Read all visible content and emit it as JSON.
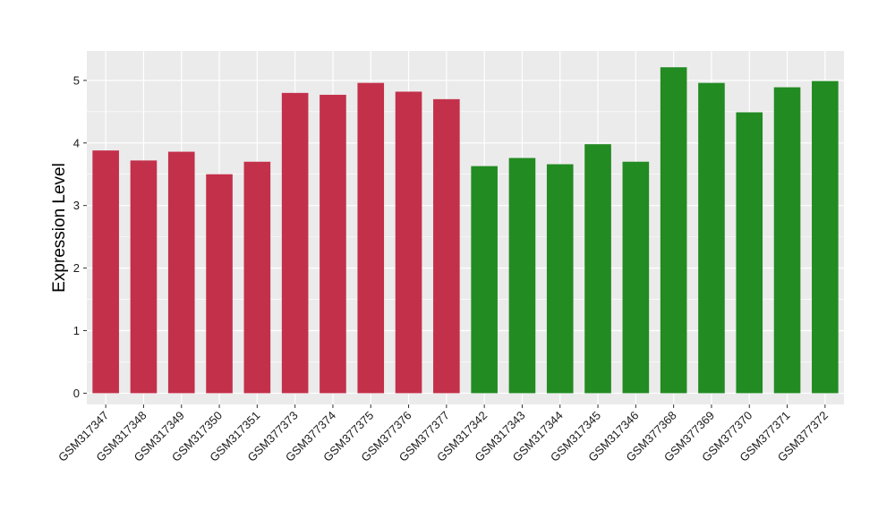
{
  "chart_data": {
    "type": "bar",
    "title": "",
    "xlabel": "",
    "ylabel": "Expression Level",
    "ylim": [
      -0.18,
      5.47
    ],
    "yticks": [
      0,
      1,
      2,
      3,
      4,
      5
    ],
    "grid": true,
    "legend": "none",
    "categories": [
      "GSM317347",
      "GSM317348",
      "GSM317349",
      "GSM317350",
      "GSM317351",
      "GSM377373",
      "GSM377374",
      "GSM377375",
      "GSM377376",
      "GSM377377",
      "GSM317342",
      "GSM317343",
      "GSM317344",
      "GSM317345",
      "GSM317346",
      "GSM377368",
      "GSM377369",
      "GSM377370",
      "GSM377371",
      "GSM377372"
    ],
    "values": [
      3.88,
      3.72,
      3.86,
      3.5,
      3.7,
      4.8,
      4.77,
      4.96,
      4.82,
      4.7,
      3.63,
      3.76,
      3.66,
      3.98,
      3.7,
      5.21,
      4.96,
      4.49,
      4.89,
      4.99
    ],
    "groups": [
      "red",
      "red",
      "red",
      "red",
      "red",
      "red",
      "red",
      "red",
      "red",
      "red",
      "green",
      "green",
      "green",
      "green",
      "green",
      "green",
      "green",
      "green",
      "green",
      "green"
    ],
    "colors": {
      "red": "#C3304A",
      "green": "#228B22"
    },
    "panel_background": "#EBEBEB",
    "grid_color": "#FFFFFF"
  }
}
